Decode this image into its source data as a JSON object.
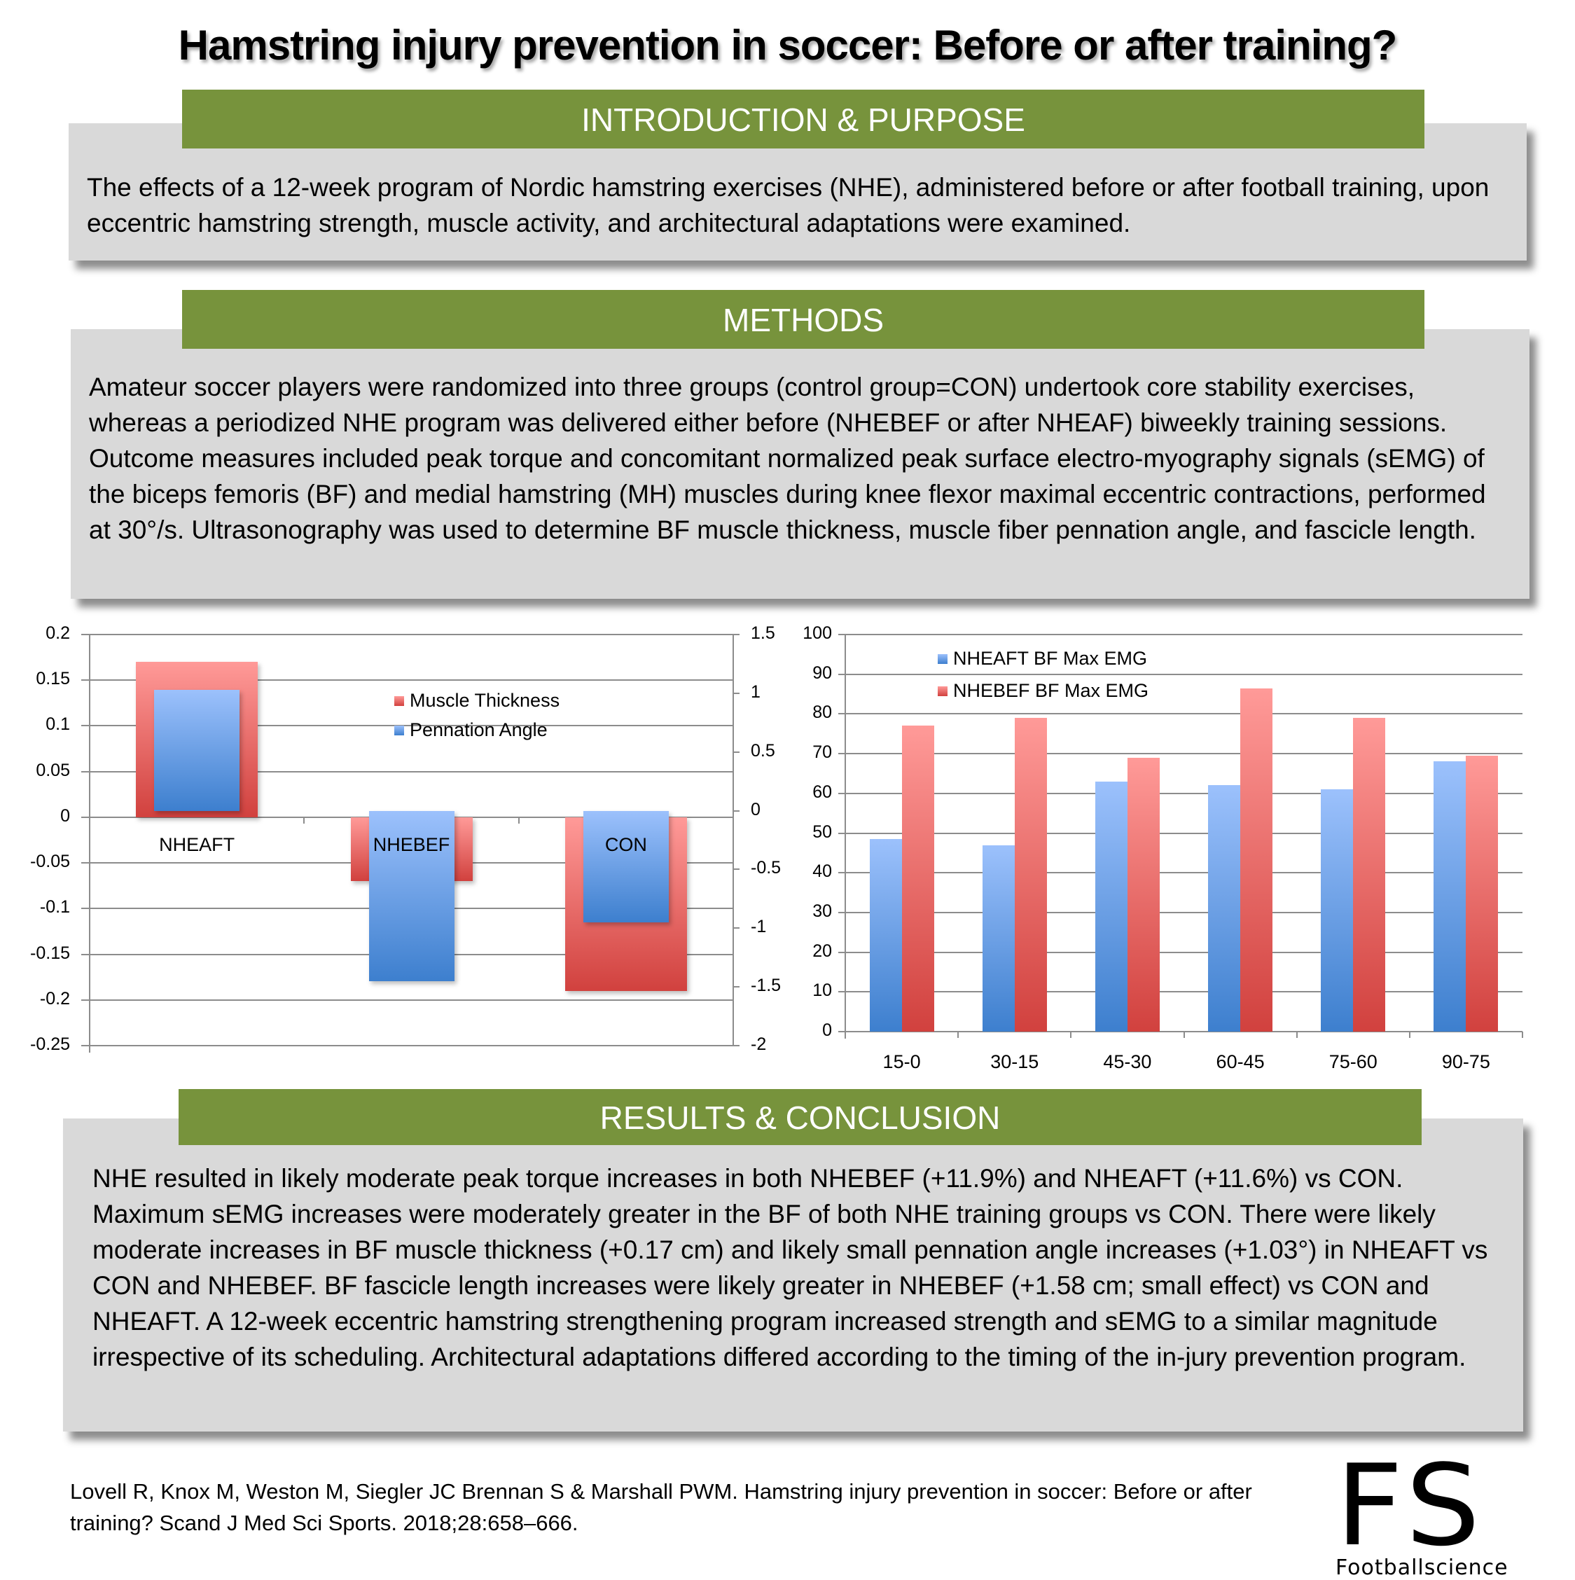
{
  "title": "Hamstring injury prevention in soccer: Before or after training?",
  "sections": {
    "intro": {
      "heading": "INTRODUCTION & PURPOSE",
      "body": "The effects of a 12-week program of Nordic hamstring exercises (NHE), administered before or after football training, upon eccentric hamstring strength, muscle activity, and architectural adaptations were examined."
    },
    "methods": {
      "heading": "METHODS",
      "body": "Amateur soccer players were randomized into three groups (control group=CON) undertook core stability exercises, whereas a periodized NHE program was delivered either before (NHEBEF or after NHEAF) biweekly training sessions. Outcome measures included peak torque and concomitant normalized peak surface electro-myography signals (sEMG) of the biceps femoris (BF) and medial hamstring (MH) muscles during knee flexor maximal eccentric contractions, performed at 30°/s. Ultrasonography was used to determine BF muscle thickness, muscle fiber pennation angle, and fascicle length."
    },
    "results": {
      "heading": "RESULTS & CONCLUSION",
      "body": "NHE resulted in likely moderate peak torque increases in both NHEBEF (+11.9%) and NHEAFT (+11.6%) vs CON. Maximum sEMG increases were moderately greater in the BF of both NHE training groups vs CON. There were likely moderate increases in BF muscle thickness (+0.17 cm) and likely small pennation angle increases (+1.03°) in NHEAFT vs CON and NHEBEF. BF fascicle length increases were likely greater in NHEBEF (+1.58 cm; small effect) vs CON and NHEAFT. A 12-week eccentric hamstring strengthening program increased strength and sEMG to a similar magnitude irrespective of its scheduling. Architectural adaptations differed according to the timing of the in-jury prevention program."
    }
  },
  "citation": "Lovell R, Knox M, Weston M, Siegler JC Brennan S & Marshall PWM. Hamstring injury prevention in soccer: Before or after training? Scand J Med Sci Sports. 2018;28:658–666.",
  "logo": {
    "mark": "FS",
    "name": "Footballscience"
  },
  "colors": {
    "header_green": "#77933c",
    "panel_gray": "#d9d9d9",
    "red": "#d1413e",
    "blue": "#3d7fce"
  },
  "chart_data": [
    {
      "type": "bar",
      "title": "",
      "categories": [
        "NHEAFT",
        "NHEBEF",
        "CON"
      ],
      "series": [
        {
          "name": "Muscle Thickness",
          "axis": "left",
          "color": "#d1413e",
          "values": [
            0.17,
            -0.07,
            -0.19
          ]
        },
        {
          "name": "Pennation Angle",
          "axis": "right",
          "color": "#3d7fce",
          "values": [
            1.03,
            -1.45,
            -0.95
          ]
        }
      ],
      "left_axis": {
        "ylim": [
          -0.25,
          0.2
        ],
        "ticks": [
          "0.2",
          "0.15",
          "0.1",
          "0.05",
          "0",
          "-0.05",
          "-0.1",
          "-0.15",
          "-0.2",
          "-0.25"
        ]
      },
      "right_axis": {
        "ylim": [
          -2,
          1.5
        ],
        "ticks": [
          "1.5",
          "1",
          "0.5",
          "0",
          "-0.5",
          "-1",
          "-1.5",
          "-2"
        ]
      },
      "xlabel": "",
      "ylabel": "",
      "grid": true,
      "legend_position": "upper-center"
    },
    {
      "type": "bar",
      "title": "",
      "categories": [
        "15-0",
        "30-15",
        "45-30",
        "60-45",
        "75-60",
        "90-75"
      ],
      "series": [
        {
          "name": "NHEAFT BF Max EMG",
          "color": "#3d7fce",
          "values": [
            48.5,
            47,
            63,
            62,
            61,
            68
          ]
        },
        {
          "name": "NHEBEF BF Max EMG",
          "color": "#d1413e",
          "values": [
            77,
            79,
            69,
            86.5,
            79,
            69.5
          ]
        }
      ],
      "ylim": [
        0,
        100
      ],
      "ticks": [
        "100",
        "90",
        "80",
        "70",
        "60",
        "50",
        "40",
        "30",
        "20",
        "10",
        "0"
      ],
      "xlabel": "",
      "ylabel": "",
      "grid": true,
      "legend_position": "upper-left"
    }
  ]
}
